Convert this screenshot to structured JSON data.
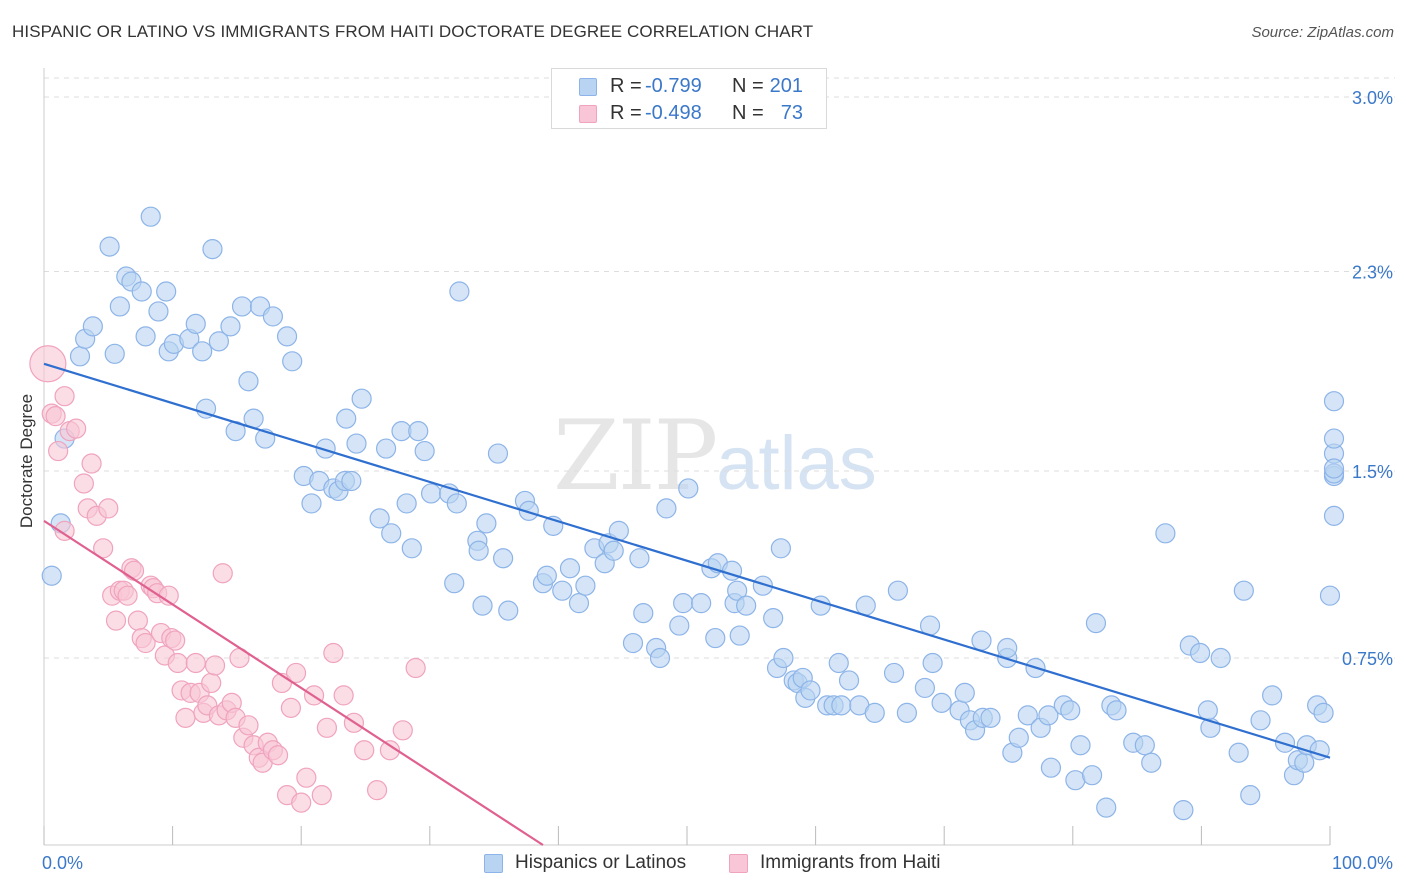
{
  "title": "HISPANIC OR LATINO VS IMMIGRANTS FROM HAITI DOCTORATE DEGREE CORRELATION CHART",
  "source": "Source: ZipAtlas.com",
  "watermark": {
    "zip": "ZIP",
    "atlas": "atlas"
  },
  "colors": {
    "blue_fill": "#b9d3f2",
    "blue_stroke": "#8db4e8",
    "blue_line": "#2f6fcf",
    "pink_fill": "#f8c6d6",
    "pink_stroke": "#f0a3bd",
    "pink_line": "#e0608f",
    "tick_label": "#3b78c9",
    "grid": "#dddddd"
  },
  "legend_top": [
    {
      "r_label": "R =",
      "r_value": "-0.799",
      "n_label": "N =",
      "n_value": "201",
      "color": "blue"
    },
    {
      "r_label": "R =",
      "r_value": "-0.498",
      "n_label": "N =",
      "n_value": "73",
      "color": "pink"
    }
  ],
  "legend_bottom": [
    {
      "label": "Hispanics or Latinos",
      "color": "blue"
    },
    {
      "label": "Immigrants from Haiti",
      "color": "pink"
    }
  ],
  "chart_data": {
    "type": "scatter",
    "title": "HISPANIC OR LATINO VS IMMIGRANTS FROM HAITI DOCTORATE DEGREE CORRELATION CHART",
    "xlabel": "",
    "ylabel": "Doctorate Degree",
    "xlim": [
      0,
      100
    ],
    "ylim": [
      0,
      3.0
    ],
    "x_tick_labels": [
      "0.0%",
      "100.0%"
    ],
    "y_ticks": [
      0.75,
      1.5,
      2.3,
      3.0
    ],
    "y_tick_labels": [
      "0.75%",
      "1.5%",
      "2.3%",
      "3.0%"
    ],
    "grid": true,
    "legend_position": "top-center",
    "series": [
      {
        "name": "Hispanics or Latinos",
        "color": "blue",
        "trend": {
          "x": [
            0,
            100
          ],
          "y": [
            1.93,
            0.35
          ]
        },
        "points": [
          [
            0.6,
            1.08
          ],
          [
            1.3,
            1.29
          ],
          [
            1.6,
            1.63
          ],
          [
            2.8,
            1.96
          ],
          [
            3.2,
            2.03
          ],
          [
            3.8,
            2.08
          ],
          [
            5.1,
            2.4
          ],
          [
            5.5,
            1.97
          ],
          [
            5.9,
            2.16
          ],
          [
            6.4,
            2.28
          ],
          [
            6.8,
            2.26
          ],
          [
            7.6,
            2.22
          ],
          [
            7.9,
            2.04
          ],
          [
            8.3,
            2.52
          ],
          [
            8.9,
            2.14
          ],
          [
            9.5,
            2.22
          ],
          [
            9.7,
            1.98
          ],
          [
            10.1,
            2.01
          ],
          [
            11.3,
            2.03
          ],
          [
            11.8,
            2.09
          ],
          [
            12.3,
            1.98
          ],
          [
            12.6,
            1.75
          ],
          [
            13.1,
            2.39
          ],
          [
            13.6,
            2.02
          ],
          [
            14.5,
            2.08
          ],
          [
            14.9,
            1.66
          ],
          [
            15.4,
            2.16
          ],
          [
            15.9,
            1.86
          ],
          [
            16.3,
            1.71
          ],
          [
            16.8,
            2.16
          ],
          [
            17.2,
            1.63
          ],
          [
            17.8,
            2.12
          ],
          [
            18.9,
            2.04
          ],
          [
            19.3,
            1.94
          ],
          [
            20.2,
            1.48
          ],
          [
            20.8,
            1.37
          ],
          [
            21.4,
            1.46
          ],
          [
            21.9,
            1.59
          ],
          [
            22.5,
            1.43
          ],
          [
            22.9,
            1.42
          ],
          [
            23.4,
            1.46
          ],
          [
            23.9,
            1.46
          ],
          [
            23.5,
            1.71
          ],
          [
            24.7,
            1.79
          ],
          [
            24.3,
            1.61
          ],
          [
            26.1,
            1.31
          ],
          [
            26.6,
            1.59
          ],
          [
            27.0,
            1.25
          ],
          [
            27.8,
            1.66
          ],
          [
            28.2,
            1.37
          ],
          [
            28.6,
            1.19
          ],
          [
            29.1,
            1.66
          ],
          [
            29.6,
            1.58
          ],
          [
            30.1,
            1.41
          ],
          [
            31.5,
            1.41
          ],
          [
            31.9,
            1.05
          ],
          [
            32.1,
            1.37
          ],
          [
            32.3,
            2.22
          ],
          [
            33.7,
            1.22
          ],
          [
            33.8,
            1.18
          ],
          [
            34.1,
            0.96
          ],
          [
            34.4,
            1.29
          ],
          [
            35.3,
            1.57
          ],
          [
            35.7,
            1.15
          ],
          [
            36.1,
            0.94
          ],
          [
            37.4,
            1.38
          ],
          [
            37.7,
            1.34
          ],
          [
            38.8,
            1.05
          ],
          [
            39.1,
            1.08
          ],
          [
            39.6,
            1.28
          ],
          [
            40.3,
            1.02
          ],
          [
            40.9,
            1.11
          ],
          [
            41.6,
            0.97
          ],
          [
            42.1,
            1.04
          ],
          [
            42.8,
            1.19
          ],
          [
            43.6,
            1.13
          ],
          [
            43.9,
            1.21
          ],
          [
            44.3,
            1.18
          ],
          [
            44.7,
            1.26
          ],
          [
            45.8,
            0.81
          ],
          [
            46.3,
            1.15
          ],
          [
            46.6,
            0.93
          ],
          [
            47.6,
            0.79
          ],
          [
            47.9,
            0.75
          ],
          [
            48.4,
            1.35
          ],
          [
            49.4,
            0.88
          ],
          [
            49.7,
            0.97
          ],
          [
            50.1,
            1.43
          ],
          [
            51.1,
            0.97
          ],
          [
            51.9,
            1.11
          ],
          [
            52.2,
            0.83
          ],
          [
            52.4,
            1.13
          ],
          [
            53.5,
            1.1
          ],
          [
            53.7,
            0.97
          ],
          [
            53.9,
            1.02
          ],
          [
            54.1,
            0.84
          ],
          [
            54.6,
            0.96
          ],
          [
            55.9,
            1.04
          ],
          [
            56.7,
            0.91
          ],
          [
            57.0,
            0.71
          ],
          [
            57.3,
            1.19
          ],
          [
            57.5,
            0.75
          ],
          [
            58.3,
            0.66
          ],
          [
            58.6,
            0.65
          ],
          [
            59.0,
            0.67
          ],
          [
            59.2,
            0.59
          ],
          [
            59.6,
            0.62
          ],
          [
            60.4,
            0.96
          ],
          [
            60.9,
            0.56
          ],
          [
            61.4,
            0.56
          ],
          [
            61.8,
            0.73
          ],
          [
            62.0,
            0.56
          ],
          [
            62.6,
            0.66
          ],
          [
            63.4,
            0.56
          ],
          [
            63.9,
            0.96
          ],
          [
            64.6,
            0.53
          ],
          [
            66.1,
            0.69
          ],
          [
            66.4,
            1.02
          ],
          [
            67.1,
            0.53
          ],
          [
            68.5,
            0.63
          ],
          [
            68.9,
            0.88
          ],
          [
            69.1,
            0.73
          ],
          [
            69.8,
            0.57
          ],
          [
            71.2,
            0.54
          ],
          [
            71.6,
            0.61
          ],
          [
            72.0,
            0.5
          ],
          [
            72.4,
            0.46
          ],
          [
            72.9,
            0.82
          ],
          [
            73.0,
            0.51
          ],
          [
            73.6,
            0.51
          ],
          [
            74.9,
            0.75
          ],
          [
            74.9,
            0.79
          ],
          [
            75.3,
            0.37
          ],
          [
            75.8,
            0.43
          ],
          [
            76.5,
            0.52
          ],
          [
            77.1,
            0.71
          ],
          [
            77.5,
            0.47
          ],
          [
            78.1,
            0.52
          ],
          [
            78.3,
            0.31
          ],
          [
            79.3,
            0.56
          ],
          [
            79.8,
            0.54
          ],
          [
            80.2,
            0.26
          ],
          [
            80.6,
            0.4
          ],
          [
            81.5,
            0.28
          ],
          [
            81.8,
            0.89
          ],
          [
            82.6,
            0.15
          ],
          [
            83.0,
            0.56
          ],
          [
            83.4,
            0.54
          ],
          [
            84.7,
            0.41
          ],
          [
            85.6,
            0.4
          ],
          [
            86.1,
            0.33
          ],
          [
            87.2,
            1.25
          ],
          [
            88.6,
            0.14
          ],
          [
            89.1,
            0.8
          ],
          [
            89.9,
            0.77
          ],
          [
            90.7,
            0.47
          ],
          [
            90.5,
            0.54
          ],
          [
            91.5,
            0.75
          ],
          [
            92.9,
            0.37
          ],
          [
            93.3,
            1.02
          ],
          [
            93.8,
            0.2
          ],
          [
            94.6,
            0.5
          ],
          [
            95.5,
            0.6
          ],
          [
            96.5,
            0.41
          ],
          [
            97.2,
            0.28
          ],
          [
            97.5,
            0.34
          ],
          [
            98.0,
            0.33
          ],
          [
            98.2,
            0.4
          ],
          [
            99.0,
            0.56
          ],
          [
            99.2,
            0.38
          ],
          [
            99.5,
            0.53
          ],
          [
            100.0,
            1.0
          ],
          [
            100.4,
            1.78
          ],
          [
            100.6,
            1.57
          ],
          [
            100.8,
            1.48
          ],
          [
            101.0,
            1.32
          ],
          [
            101.2,
            1.63
          ],
          [
            101.4,
            1.49
          ],
          [
            101.6,
            1.51
          ]
        ]
      },
      {
        "name": "Immigrants from Haiti",
        "color": "pink",
        "trend": {
          "x": [
            0,
            38.8
          ],
          "y": [
            1.3,
            0.0
          ]
        },
        "points": [
          [
            0.3,
            1.93
          ],
          [
            0.6,
            1.73
          ],
          [
            0.9,
            1.72
          ],
          [
            1.1,
            1.58
          ],
          [
            1.6,
            1.26
          ],
          [
            1.6,
            1.8
          ],
          [
            2.0,
            1.66
          ],
          [
            2.5,
            1.67
          ],
          [
            3.1,
            1.45
          ],
          [
            3.4,
            1.35
          ],
          [
            3.7,
            1.53
          ],
          [
            4.1,
            1.32
          ],
          [
            4.6,
            1.19
          ],
          [
            5.0,
            1.35
          ],
          [
            5.3,
            1.0
          ],
          [
            5.6,
            0.9
          ],
          [
            5.9,
            1.02
          ],
          [
            6.2,
            1.02
          ],
          [
            6.5,
            1.0
          ],
          [
            6.8,
            1.11
          ],
          [
            7.0,
            1.1
          ],
          [
            7.3,
            0.9
          ],
          [
            7.6,
            0.83
          ],
          [
            7.9,
            0.81
          ],
          [
            8.3,
            1.04
          ],
          [
            8.5,
            1.03
          ],
          [
            8.8,
            1.01
          ],
          [
            9.1,
            0.85
          ],
          [
            9.4,
            0.76
          ],
          [
            9.7,
            1.0
          ],
          [
            9.9,
            0.83
          ],
          [
            10.2,
            0.82
          ],
          [
            10.4,
            0.73
          ],
          [
            10.7,
            0.62
          ],
          [
            11.0,
            0.51
          ],
          [
            11.4,
            0.61
          ],
          [
            11.8,
            0.73
          ],
          [
            12.1,
            0.61
          ],
          [
            12.4,
            0.53
          ],
          [
            12.7,
            0.56
          ],
          [
            13.0,
            0.65
          ],
          [
            13.3,
            0.72
          ],
          [
            13.6,
            0.52
          ],
          [
            13.9,
            1.09
          ],
          [
            14.2,
            0.54
          ],
          [
            14.6,
            0.57
          ],
          [
            14.9,
            0.51
          ],
          [
            15.2,
            0.75
          ],
          [
            15.5,
            0.43
          ],
          [
            15.9,
            0.48
          ],
          [
            16.3,
            0.4
          ],
          [
            16.7,
            0.35
          ],
          [
            17.0,
            0.33
          ],
          [
            17.4,
            0.41
          ],
          [
            17.8,
            0.38
          ],
          [
            18.2,
            0.36
          ],
          [
            18.5,
            0.65
          ],
          [
            18.9,
            0.2
          ],
          [
            19.2,
            0.55
          ],
          [
            19.6,
            0.69
          ],
          [
            20.0,
            0.17
          ],
          [
            20.4,
            0.27
          ],
          [
            21.0,
            0.6
          ],
          [
            21.6,
            0.2
          ],
          [
            22.0,
            0.47
          ],
          [
            22.5,
            0.77
          ],
          [
            23.3,
            0.6
          ],
          [
            24.1,
            0.49
          ],
          [
            24.9,
            0.38
          ],
          [
            25.9,
            0.22
          ],
          [
            26.9,
            0.38
          ],
          [
            27.9,
            0.46
          ],
          [
            28.9,
            0.71
          ]
        ]
      }
    ]
  }
}
